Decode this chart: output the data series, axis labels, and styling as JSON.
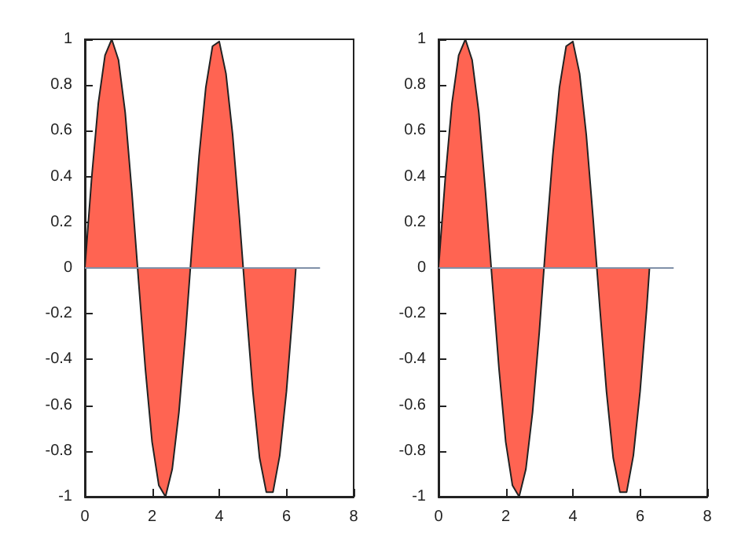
{
  "chart_data": [
    {
      "type": "area",
      "xlim": [
        0,
        8
      ],
      "xticks": [
        0,
        2,
        4,
        6,
        8
      ],
      "ylim": [
        -1,
        1
      ],
      "yticks": [
        -1,
        -0.8,
        -0.6,
        -0.4,
        -0.2,
        0,
        0.2,
        0.4,
        0.6,
        0.8,
        1
      ],
      "series": [
        {
          "color": "#ff6452",
          "x": [
            0,
            0.2,
            0.4,
            0.6,
            0.8,
            1.0,
            1.2,
            1.4,
            1.6,
            1.8,
            2.0,
            2.2,
            2.4,
            2.6,
            2.8,
            3.0,
            3.2,
            3.4,
            3.6,
            3.8,
            4.0,
            4.2,
            4.4,
            4.6,
            4.8,
            5.0,
            5.2,
            5.4,
            5.6,
            5.8,
            6.0,
            6.2,
            6.28
          ],
          "values": [
            0,
            0.39,
            0.72,
            0.93,
            1.0,
            0.91,
            0.68,
            0.33,
            -0.06,
            -0.44,
            -0.76,
            -0.95,
            -1.0,
            -0.88,
            -0.63,
            -0.28,
            0.12,
            0.49,
            0.79,
            0.97,
            0.99,
            0.85,
            0.58,
            0.22,
            -0.17,
            -0.54,
            -0.83,
            -0.98,
            -0.98,
            -0.82,
            -0.54,
            -0.17,
            0
          ]
        },
        {
          "type": "line",
          "color": "#8090a8",
          "x": [
            0,
            7
          ],
          "values": [
            0,
            0
          ]
        }
      ]
    },
    {
      "type": "area",
      "xlim": [
        0,
        8
      ],
      "xticks": [
        0,
        2,
        4,
        6,
        8
      ],
      "ylim": [
        -1,
        1
      ],
      "yticks": [
        -1,
        -0.8,
        -0.6,
        -0.4,
        -0.2,
        0,
        0.2,
        0.4,
        0.6,
        0.8,
        1
      ],
      "series": [
        {
          "color": "#ff6452",
          "x": [
            0,
            0.2,
            0.4,
            0.6,
            0.8,
            1.0,
            1.2,
            1.4,
            1.6,
            1.8,
            2.0,
            2.2,
            2.4,
            2.6,
            2.8,
            3.0,
            3.2,
            3.4,
            3.6,
            3.8,
            4.0,
            4.2,
            4.4,
            4.6,
            4.8,
            5.0,
            5.2,
            5.4,
            5.6,
            5.8,
            6.0,
            6.2,
            6.28
          ],
          "values": [
            0,
            0.39,
            0.72,
            0.93,
            1.0,
            0.91,
            0.68,
            0.33,
            -0.06,
            -0.44,
            -0.76,
            -0.95,
            -1.0,
            -0.88,
            -0.63,
            -0.28,
            0.12,
            0.49,
            0.79,
            0.97,
            0.99,
            0.85,
            0.58,
            0.22,
            -0.17,
            -0.54,
            -0.83,
            -0.98,
            -0.98,
            -0.82,
            -0.54,
            -0.17,
            0
          ]
        },
        {
          "type": "line",
          "color": "#8090a8",
          "x": [
            0,
            7
          ],
          "values": [
            0,
            0
          ]
        }
      ]
    }
  ]
}
